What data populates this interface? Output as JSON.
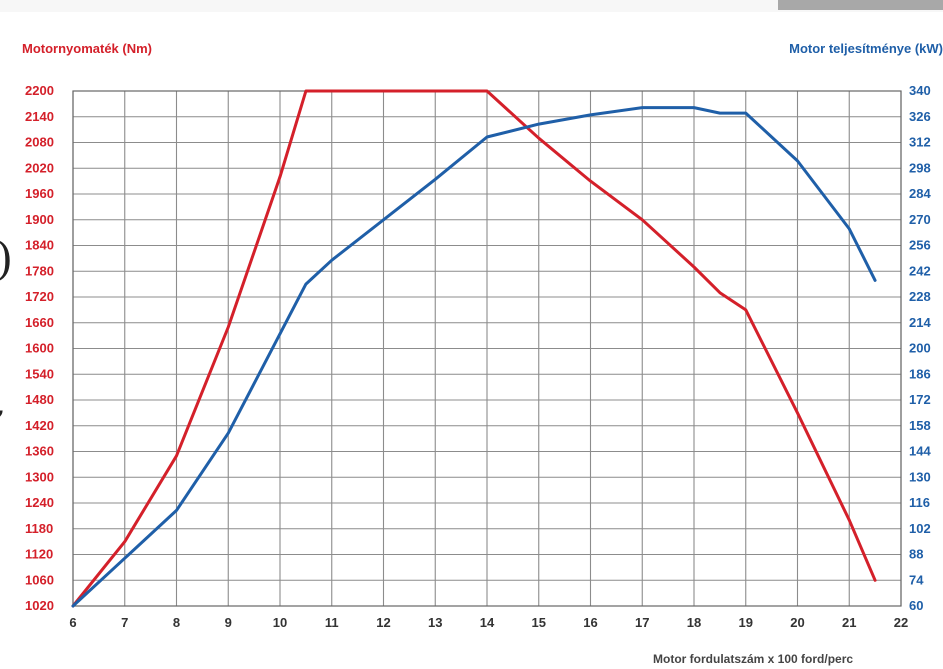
{
  "chart_data": {
    "type": "line",
    "y_left_label": "Motornyomaték (Nm)",
    "y_right_label": "Motor teljesítménye (kW)",
    "xlabel": "Motor fordulatszám x 100 ford/perc",
    "xlim": [
      6,
      22
    ],
    "x_ticks": [
      "6",
      "7",
      "8",
      "9",
      "10",
      "11",
      "12",
      "13",
      "14",
      "15",
      "16",
      "17",
      "18",
      "19",
      "20",
      "21",
      "22"
    ],
    "y_left_ticks": [
      "2200",
      "2140",
      "2080",
      "2020",
      "1960",
      "1900",
      "1840",
      "1780",
      "1720",
      "1660",
      "1600",
      "1540",
      "1480",
      "1420",
      "1360",
      "1300",
      "1240",
      "1180",
      "1120",
      "1060",
      "1020"
    ],
    "y_right_ticks": [
      "340",
      "326",
      "312",
      "298",
      "284",
      "270",
      "256",
      "242",
      "228",
      "214",
      "200",
      "186",
      "172",
      "158",
      "144",
      "130",
      "116",
      "102",
      "88",
      "74",
      "60"
    ],
    "grid": true,
    "series": [
      {
        "axis": "left",
        "color": "#d4202a",
        "x": [
          6,
          7,
          8,
          9,
          10,
          10.5,
          11,
          12,
          13,
          14,
          15,
          16,
          17,
          18,
          18.5,
          19,
          20,
          21,
          21.5
        ],
        "y": [
          1020,
          1150,
          1350,
          1650,
          2000,
          2200,
          2200,
          2200,
          2200,
          2200,
          2090,
          1990,
          1900,
          1790,
          1730,
          1690,
          1450,
          1200,
          1060
        ]
      },
      {
        "axis": "right",
        "color": "#1f5fa8",
        "x": [
          6,
          7,
          8,
          9,
          10,
          10.5,
          11,
          12,
          13,
          14,
          15,
          16,
          17,
          17.5,
          18,
          18.5,
          19,
          20,
          21,
          21.5
        ],
        "y": [
          60,
          86,
          112,
          154,
          208,
          235,
          248,
          270,
          292,
          315,
          322,
          327,
          331,
          331,
          331,
          328,
          328,
          302,
          265,
          237
        ]
      }
    ]
  }
}
